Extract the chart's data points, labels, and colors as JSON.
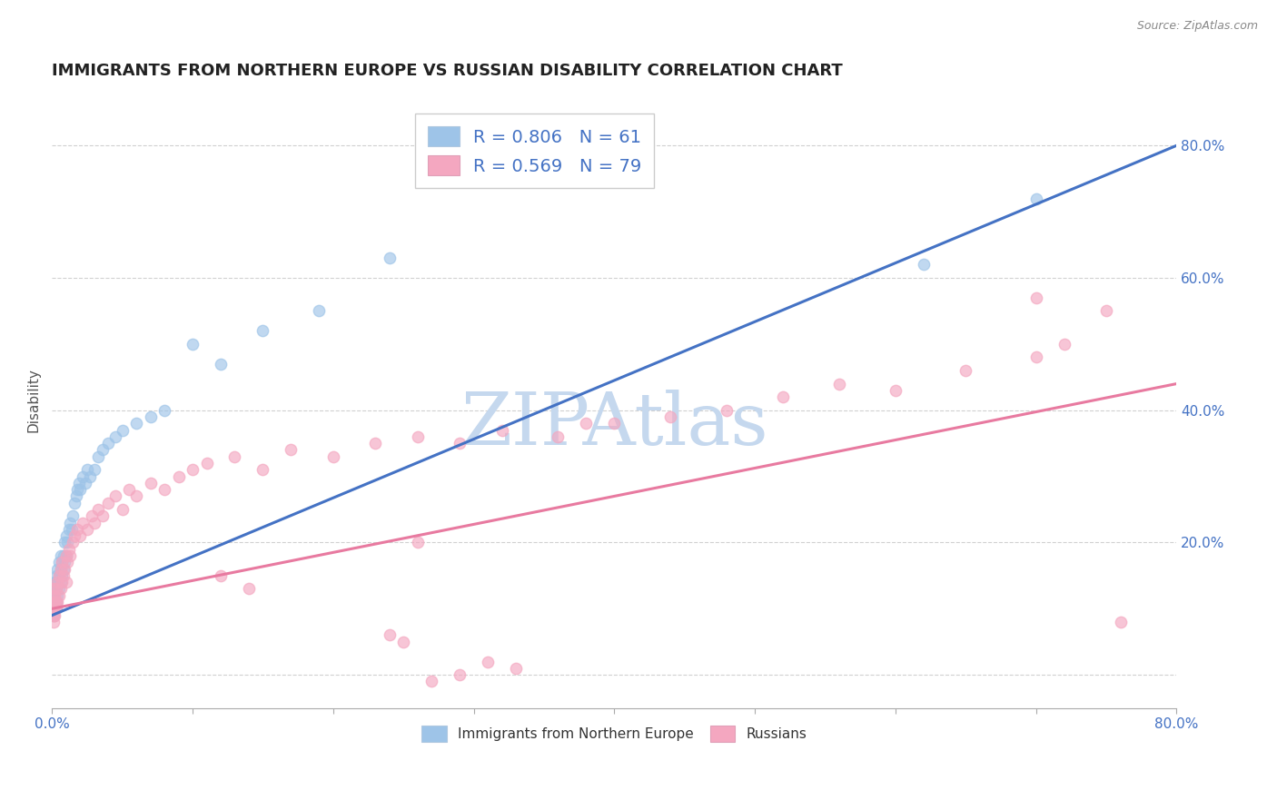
{
  "title": "IMMIGRANTS FROM NORTHERN EUROPE VS RUSSIAN DISABILITY CORRELATION CHART",
  "source": "Source: ZipAtlas.com",
  "ylabel": "Disability",
  "xlim": [
    0.0,
    0.8
  ],
  "ylim": [
    -0.05,
    0.88
  ],
  "xticks": [
    0.0,
    0.1,
    0.2,
    0.3,
    0.4,
    0.5,
    0.6,
    0.7,
    0.8
  ],
  "xticklabels": [
    "0.0%",
    "",
    "",
    "",
    "",
    "",
    "",
    "",
    "80.0%"
  ],
  "ytick_positions": [
    0.0,
    0.2,
    0.4,
    0.6,
    0.8
  ],
  "yticklabels": [
    "",
    "20.0%",
    "40.0%",
    "60.0%",
    "80.0%"
  ],
  "blue_color": "#9ec4e8",
  "pink_color": "#f4a7c0",
  "blue_line_color": "#4472c4",
  "pink_line_color": "#e87aa0",
  "blue_R": 0.806,
  "blue_N": 61,
  "pink_R": 0.569,
  "pink_N": 79,
  "blue_line_x0": 0.0,
  "blue_line_y0": 0.09,
  "blue_line_x1": 0.8,
  "blue_line_y1": 0.8,
  "pink_line_x0": 0.0,
  "pink_line_y0": 0.1,
  "pink_line_x1": 0.8,
  "pink_line_y1": 0.44,
  "blue_scatter_x": [
    0.001,
    0.001,
    0.001,
    0.001,
    0.001,
    0.002,
    0.002,
    0.002,
    0.002,
    0.002,
    0.003,
    0.003,
    0.003,
    0.003,
    0.004,
    0.004,
    0.004,
    0.005,
    0.005,
    0.005,
    0.006,
    0.006,
    0.006,
    0.007,
    0.007,
    0.008,
    0.008,
    0.009,
    0.009,
    0.01,
    0.01,
    0.011,
    0.012,
    0.013,
    0.014,
    0.015,
    0.016,
    0.017,
    0.018,
    0.019,
    0.02,
    0.022,
    0.024,
    0.025,
    0.027,
    0.03,
    0.033,
    0.036,
    0.04,
    0.045,
    0.05,
    0.06,
    0.07,
    0.08,
    0.1,
    0.12,
    0.15,
    0.19,
    0.24,
    0.62,
    0.7
  ],
  "blue_scatter_y": [
    0.09,
    0.1,
    0.11,
    0.12,
    0.13,
    0.1,
    0.11,
    0.12,
    0.13,
    0.14,
    0.1,
    0.11,
    0.13,
    0.15,
    0.12,
    0.14,
    0.16,
    0.13,
    0.15,
    0.17,
    0.14,
    0.16,
    0.18,
    0.15,
    0.17,
    0.16,
    0.18,
    0.17,
    0.2,
    0.18,
    0.21,
    0.2,
    0.22,
    0.23,
    0.22,
    0.24,
    0.26,
    0.27,
    0.28,
    0.29,
    0.28,
    0.3,
    0.29,
    0.31,
    0.3,
    0.31,
    0.33,
    0.34,
    0.35,
    0.36,
    0.37,
    0.38,
    0.39,
    0.4,
    0.5,
    0.47,
    0.52,
    0.55,
    0.63,
    0.62,
    0.72
  ],
  "pink_scatter_x": [
    0.001,
    0.001,
    0.001,
    0.001,
    0.001,
    0.001,
    0.002,
    0.002,
    0.002,
    0.002,
    0.003,
    0.003,
    0.003,
    0.004,
    0.004,
    0.005,
    0.005,
    0.006,
    0.006,
    0.007,
    0.007,
    0.008,
    0.009,
    0.01,
    0.01,
    0.011,
    0.012,
    0.013,
    0.015,
    0.016,
    0.018,
    0.02,
    0.022,
    0.025,
    0.028,
    0.03,
    0.033,
    0.036,
    0.04,
    0.045,
    0.05,
    0.055,
    0.06,
    0.07,
    0.08,
    0.09,
    0.1,
    0.11,
    0.13,
    0.15,
    0.17,
    0.2,
    0.23,
    0.26,
    0.29,
    0.32,
    0.36,
    0.4,
    0.44,
    0.48,
    0.52,
    0.56,
    0.6,
    0.65,
    0.7,
    0.72,
    0.75,
    0.27,
    0.29,
    0.31,
    0.33,
    0.25,
    0.24,
    0.12,
    0.14,
    0.38,
    0.26,
    0.7,
    0.76
  ],
  "pink_scatter_y": [
    0.08,
    0.09,
    0.1,
    0.11,
    0.12,
    0.13,
    0.09,
    0.1,
    0.11,
    0.12,
    0.1,
    0.11,
    0.13,
    0.11,
    0.14,
    0.12,
    0.15,
    0.13,
    0.16,
    0.14,
    0.17,
    0.15,
    0.16,
    0.14,
    0.18,
    0.17,
    0.19,
    0.18,
    0.2,
    0.21,
    0.22,
    0.21,
    0.23,
    0.22,
    0.24,
    0.23,
    0.25,
    0.24,
    0.26,
    0.27,
    0.25,
    0.28,
    0.27,
    0.29,
    0.28,
    0.3,
    0.31,
    0.32,
    0.33,
    0.31,
    0.34,
    0.33,
    0.35,
    0.36,
    0.35,
    0.37,
    0.36,
    0.38,
    0.39,
    0.4,
    0.42,
    0.44,
    0.43,
    0.46,
    0.48,
    0.5,
    0.55,
    -0.01,
    0.0,
    0.02,
    0.01,
    0.05,
    0.06,
    0.15,
    0.13,
    0.38,
    0.2,
    0.57,
    0.08
  ],
  "watermark": "ZIPAtlas",
  "watermark_color": "#c5d8ee",
  "background_color": "#ffffff",
  "grid_color": "#cccccc",
  "title_color": "#222222",
  "axis_label_color": "#555555",
  "tick_label_color": "#4472c4",
  "legend_text_color": "#4472c4"
}
